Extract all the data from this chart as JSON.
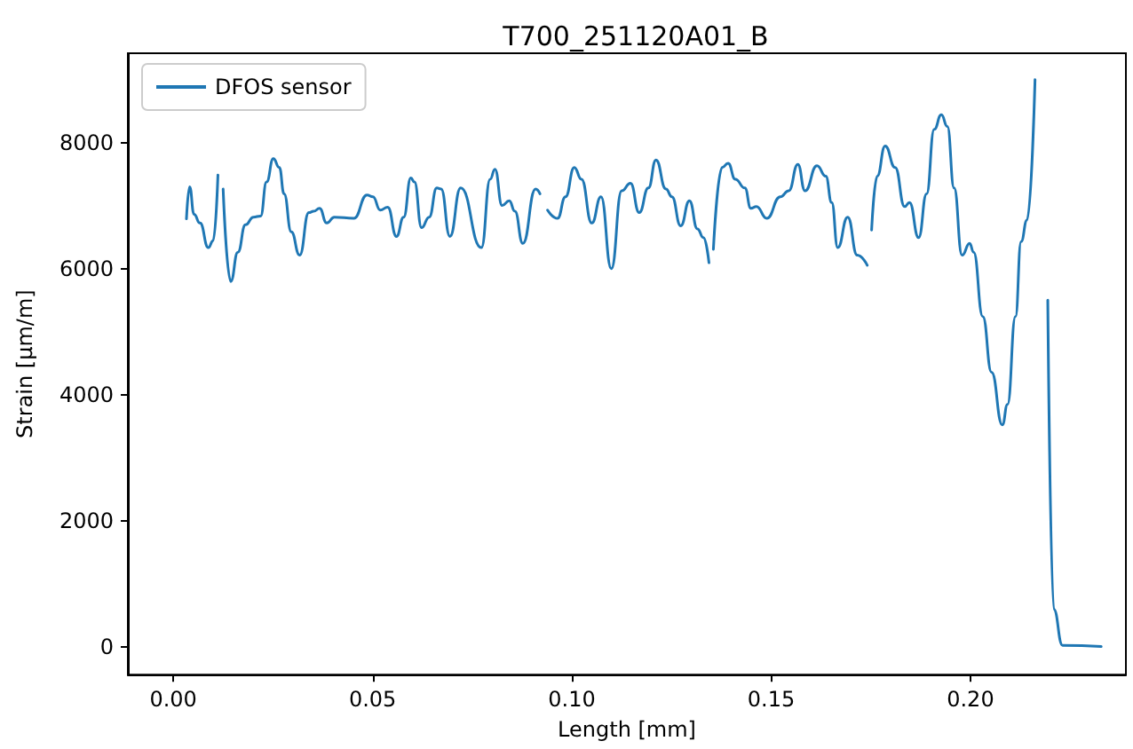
{
  "chart_data": {
    "type": "line",
    "title": "T700_251120A01_B",
    "xlabel": "Length [mm]",
    "ylabel": "Strain [μm/m]",
    "xlim": [
      -0.0114,
      0.239
    ],
    "ylim": [
      -446,
      9422
    ],
    "xticks": [
      {
        "value": 0,
        "label": "0.00"
      },
      {
        "value": 0.05,
        "label": "0.05"
      },
      {
        "value": 0.1,
        "label": "0.10"
      },
      {
        "value": 0.15,
        "label": "0.15"
      },
      {
        "value": 0.2,
        "label": "0.20"
      }
    ],
    "yticks": [
      0,
      2000,
      4000,
      6000,
      8000
    ],
    "grid": false,
    "legend": "top left",
    "series": [
      {
        "name": "DFOS sensor",
        "color": "#1f77b4",
        "x": [
          0.0033,
          0.0041,
          0.0052,
          0.0067,
          0.0088,
          0.01,
          0.0112,
          0.0118,
          0.0125,
          0.0144,
          0.0162,
          0.0181,
          0.0201,
          0.0219,
          0.0234,
          0.0251,
          0.0266,
          0.0278,
          0.0296,
          0.0317,
          0.034,
          0.0352,
          0.0367,
          0.0385,
          0.0404,
          0.0453,
          0.0486,
          0.0501,
          0.0519,
          0.0538,
          0.056,
          0.0578,
          0.0596,
          0.0605,
          0.0623,
          0.0642,
          0.0661,
          0.0672,
          0.0694,
          0.0721,
          0.0773,
          0.0795,
          0.0807,
          0.0825,
          0.0843,
          0.0857,
          0.0877,
          0.0909,
          0.092,
          0.093,
          0.0939,
          0.0964,
          0.0984,
          0.1006,
          0.1024,
          0.105,
          0.1073,
          0.1099,
          0.1125,
          0.1147,
          0.1169,
          0.1192,
          0.1211,
          0.1236,
          0.1251,
          0.1273,
          0.1295,
          0.1315,
          0.133,
          0.1344,
          0.135,
          0.1355,
          0.1377,
          0.1392,
          0.141,
          0.1434,
          0.1449,
          0.1463,
          0.1489,
          0.1523,
          0.1544,
          0.1567,
          0.1585,
          0.1615,
          0.1637,
          0.1652,
          0.1667,
          0.1692,
          0.1716,
          0.1741,
          0.1746,
          0.1752,
          0.1766,
          0.1786,
          0.1811,
          0.1835,
          0.1847,
          0.187,
          0.189,
          0.1909,
          0.1927,
          0.1942,
          0.1959,
          0.1979,
          0.1998,
          0.2008,
          0.2031,
          0.2053,
          0.208,
          0.2093,
          0.2113,
          0.2127,
          0.2142,
          0.2162,
          0.218,
          0.2194,
          0.2209,
          0.2231,
          0.2328
        ],
        "values": [
          6792,
          7302,
          6864,
          6725,
          6335,
          6446,
          7489,
          null,
          7266,
          5797,
          6262,
          6697,
          6820,
          6837,
          7377,
          7748,
          7609,
          7190,
          6586,
          6215,
          6892,
          6912,
          6958,
          6725,
          6820,
          6800,
          7171,
          7143,
          6931,
          6976,
          6513,
          6820,
          7441,
          7377,
          6652,
          6820,
          7282,
          7266,
          6513,
          7282,
          6335,
          7422,
          7581,
          7004,
          7079,
          6912,
          6402,
          7266,
          7190,
          null,
          6931,
          6800,
          7143,
          7609,
          7422,
          6725,
          7143,
          6001,
          7237,
          7358,
          6892,
          7282,
          7729,
          7266,
          7143,
          6680,
          7079,
          6633,
          6494,
          6095,
          null,
          6307,
          7609,
          7673,
          7422,
          7282,
          6958,
          6987,
          6800,
          7143,
          7237,
          7656,
          7237,
          7637,
          7469,
          7051,
          6335,
          6820,
          6215,
          6056,
          null,
          6614,
          7469,
          7951,
          7609,
          6987,
          7051,
          6494,
          7190,
          8213,
          8445,
          8259,
          7282,
          6215,
          6401,
          6262,
          5240,
          4356,
          3520,
          3846,
          5240,
          6430,
          6772,
          9002,
          null,
          5499,
          594,
          20,
          0
        ]
      }
    ]
  }
}
